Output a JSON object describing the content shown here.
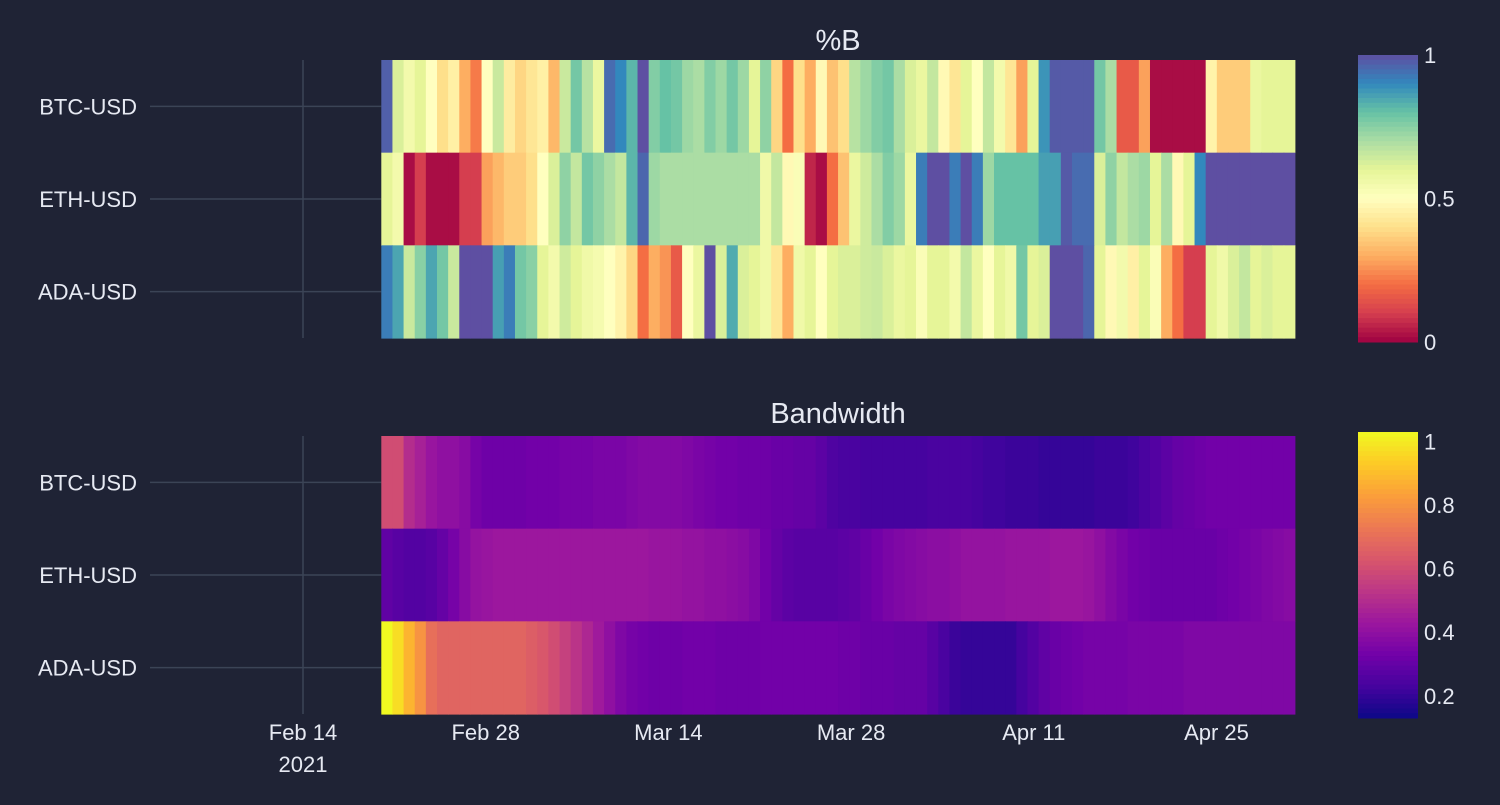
{
  "colors": {
    "background": "#1f2335",
    "text": "#e6e9f2",
    "axis_line": "#3b4456"
  },
  "chart_data": [
    {
      "type": "heatmap",
      "title": "%B",
      "rows": [
        "BTC-USD",
        "ETH-USD",
        "ADA-USD"
      ],
      "x_start": "2021-02-20",
      "x_end": "2021-05-01",
      "colorscale": "Spectral",
      "zmin": 0,
      "zmax": 1,
      "colorbar_ticks": [
        "0",
        "0.5",
        "1"
      ],
      "z": [
        [
          0.97,
          0.62,
          0.55,
          0.6,
          0.5,
          0.4,
          0.45,
          0.3,
          0.22,
          0.5,
          0.65,
          0.44,
          0.38,
          0.42,
          0.45,
          0.32,
          0.65,
          0.78,
          0.68,
          0.58,
          0.95,
          0.9,
          0.82,
          1.0,
          0.76,
          0.8,
          0.78,
          0.72,
          0.7,
          0.76,
          0.72,
          0.78,
          0.72,
          0.6,
          0.74,
          0.38,
          0.2,
          0.4,
          0.3,
          0.48,
          0.34,
          0.4,
          0.68,
          0.72,
          0.76,
          0.78,
          0.7,
          0.62,
          0.58,
          0.66,
          0.48,
          0.42,
          0.6,
          0.5,
          0.66,
          0.55,
          0.42,
          0.28,
          0.6,
          0.88,
          0.98,
          0.98,
          0.98,
          0.98,
          0.78,
          0.7,
          0.16,
          0.16,
          0.28,
          0.02,
          0.02,
          0.02,
          0.02,
          0.02,
          0.46,
          0.36,
          0.36,
          0.36,
          0.58,
          0.6,
          0.6,
          0.6
        ],
        [
          0.6,
          0.55,
          0.02,
          0.1,
          0.02,
          0.02,
          0.02,
          0.1,
          0.1,
          0.28,
          0.32,
          0.36,
          0.36,
          0.4,
          0.5,
          0.62,
          0.74,
          0.66,
          0.78,
          0.74,
          0.7,
          0.66,
          0.82,
          0.96,
          0.72,
          0.7,
          0.7,
          0.7,
          0.7,
          0.7,
          0.7,
          0.7,
          0.7,
          0.7,
          0.56,
          0.66,
          0.48,
          0.52,
          0.06,
          0.02,
          0.2,
          0.34,
          0.58,
          0.64,
          0.7,
          0.76,
          0.72,
          0.58,
          0.92,
          1.0,
          1.0,
          0.92,
          1.0,
          0.92,
          0.72,
          0.8,
          0.8,
          0.8,
          0.8,
          0.86,
          0.86,
          0.98,
          0.95,
          0.95,
          0.62,
          0.74,
          0.66,
          0.7,
          0.72,
          0.6,
          0.7,
          0.48,
          0.6,
          0.9,
          1.0,
          1.0,
          1.0,
          1.0,
          1.0,
          1.0,
          1.0,
          1.0
        ],
        [
          0.92,
          0.85,
          0.65,
          0.75,
          0.85,
          0.78,
          0.65,
          1.0,
          1.0,
          1.0,
          0.86,
          0.92,
          0.78,
          0.75,
          0.6,
          0.55,
          0.64,
          0.6,
          0.56,
          0.54,
          0.5,
          0.46,
          0.38,
          0.2,
          0.3,
          0.26,
          0.16,
          0.5,
          0.58,
          1.0,
          0.62,
          0.84,
          0.62,
          0.6,
          0.56,
          0.42,
          0.3,
          0.56,
          0.6,
          0.5,
          0.6,
          0.62,
          0.62,
          0.64,
          0.65,
          0.62,
          0.58,
          0.6,
          0.52,
          0.6,
          0.6,
          0.55,
          0.66,
          0.58,
          0.5,
          0.6,
          0.56,
          0.78,
          0.6,
          0.62,
          1.0,
          1.0,
          1.0,
          0.96,
          0.6,
          0.48,
          0.55,
          0.45,
          0.6,
          0.52,
          0.3,
          0.2,
          0.1,
          0.1,
          0.6,
          0.56,
          0.62,
          0.66,
          0.6,
          0.62,
          0.6,
          0.6
        ]
      ]
    },
    {
      "type": "heatmap",
      "title": "Bandwidth",
      "rows": [
        "BTC-USD",
        "ETH-USD",
        "ADA-USD"
      ],
      "x_start": "2021-02-20",
      "x_end": "2021-05-01",
      "colorscale": "Plasma",
      "zmin": 0.13,
      "zmax": 1.03,
      "colorbar_ticks": [
        "0.2",
        "0.4",
        "0.6",
        "0.8",
        "1"
      ],
      "z": [
        [
          0.6,
          0.6,
          0.5,
          0.46,
          0.42,
          0.4,
          0.4,
          0.38,
          0.34,
          0.32,
          0.32,
          0.32,
          0.32,
          0.33,
          0.33,
          0.33,
          0.34,
          0.34,
          0.34,
          0.35,
          0.35,
          0.35,
          0.36,
          0.37,
          0.37,
          0.37,
          0.37,
          0.36,
          0.35,
          0.34,
          0.33,
          0.33,
          0.32,
          0.32,
          0.32,
          0.31,
          0.31,
          0.3,
          0.3,
          0.28,
          0.25,
          0.24,
          0.24,
          0.23,
          0.23,
          0.23,
          0.23,
          0.23,
          0.23,
          0.24,
          0.24,
          0.24,
          0.24,
          0.23,
          0.22,
          0.22,
          0.21,
          0.21,
          0.21,
          0.2,
          0.2,
          0.2,
          0.2,
          0.2,
          0.21,
          0.21,
          0.21,
          0.22,
          0.24,
          0.26,
          0.28,
          0.3,
          0.31,
          0.32,
          0.33,
          0.33,
          0.33,
          0.33,
          0.33,
          0.33,
          0.33,
          0.33
        ],
        [
          0.29,
          0.27,
          0.26,
          0.26,
          0.27,
          0.3,
          0.34,
          0.38,
          0.41,
          0.42,
          0.43,
          0.43,
          0.43,
          0.43,
          0.43,
          0.43,
          0.43,
          0.43,
          0.43,
          0.43,
          0.43,
          0.43,
          0.43,
          0.43,
          0.42,
          0.42,
          0.42,
          0.41,
          0.41,
          0.4,
          0.4,
          0.39,
          0.38,
          0.36,
          0.33,
          0.3,
          0.28,
          0.27,
          0.27,
          0.27,
          0.27,
          0.28,
          0.29,
          0.31,
          0.33,
          0.35,
          0.36,
          0.37,
          0.38,
          0.39,
          0.39,
          0.4,
          0.41,
          0.41,
          0.41,
          0.41,
          0.42,
          0.42,
          0.42,
          0.42,
          0.43,
          0.43,
          0.43,
          0.42,
          0.4,
          0.37,
          0.35,
          0.33,
          0.32,
          0.31,
          0.31,
          0.31,
          0.31,
          0.31,
          0.31,
          0.32,
          0.33,
          0.34,
          0.35,
          0.36,
          0.37,
          0.38
        ],
        [
          1.03,
          0.97,
          0.88,
          0.8,
          0.7,
          0.67,
          0.67,
          0.67,
          0.67,
          0.67,
          0.67,
          0.67,
          0.67,
          0.65,
          0.63,
          0.6,
          0.56,
          0.52,
          0.48,
          0.44,
          0.4,
          0.36,
          0.34,
          0.33,
          0.32,
          0.32,
          0.32,
          0.33,
          0.33,
          0.33,
          0.32,
          0.32,
          0.32,
          0.32,
          0.33,
          0.33,
          0.33,
          0.33,
          0.33,
          0.33,
          0.33,
          0.32,
          0.32,
          0.31,
          0.31,
          0.31,
          0.3,
          0.3,
          0.3,
          0.27,
          0.24,
          0.21,
          0.2,
          0.2,
          0.2,
          0.2,
          0.2,
          0.23,
          0.26,
          0.29,
          0.31,
          0.32,
          0.33,
          0.34,
          0.34,
          0.34,
          0.34,
          0.35,
          0.35,
          0.35,
          0.35,
          0.35,
          0.36,
          0.36,
          0.36,
          0.36,
          0.36,
          0.36,
          0.36,
          0.36,
          0.36,
          0.36
        ]
      ]
    }
  ],
  "x_axis": {
    "ticks": [
      {
        "date": "2021-02-14",
        "label": "Feb 14",
        "sublabel": "2021"
      },
      {
        "date": "2021-02-28",
        "label": "Feb 28"
      },
      {
        "date": "2021-03-14",
        "label": "Mar 14"
      },
      {
        "date": "2021-03-28",
        "label": "Mar 28"
      },
      {
        "date": "2021-04-11",
        "label": "Apr 11"
      },
      {
        "date": "2021-04-25",
        "label": "Apr 25"
      }
    ]
  }
}
